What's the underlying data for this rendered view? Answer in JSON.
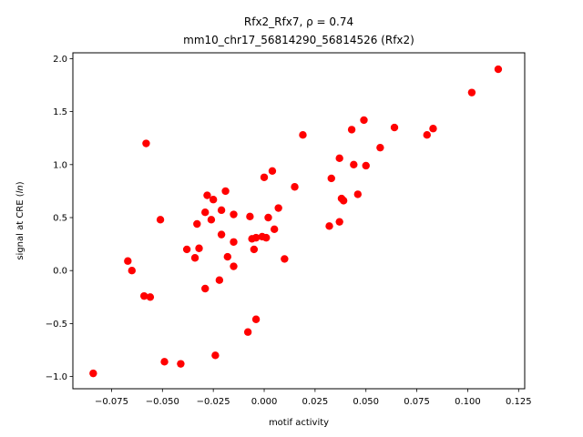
{
  "chart_data": {
    "type": "scatter",
    "title": "Rfx2_Rfx7, ρ = 0.74",
    "subtitle": "mm10_chr17_56814290_56814526 (Rfx2)",
    "xlabel": "motif activity",
    "ylabel_prefix": "signal at CRE (",
    "ylabel_italic": "ln",
    "ylabel_suffix": ")",
    "xlim": [
      -0.094,
      0.128
    ],
    "ylim": [
      -1.115,
      2.055
    ],
    "xticks": [
      -0.075,
      -0.05,
      -0.025,
      0.0,
      0.025,
      0.05,
      0.075,
      0.1,
      0.125
    ],
    "xtick_labels": [
      "−0.075",
      "−0.050",
      "−0.025",
      "0.000",
      "0.025",
      "0.050",
      "0.075",
      "0.100",
      "0.125"
    ],
    "yticks": [
      -1.0,
      -0.5,
      0.0,
      0.5,
      1.0,
      1.5,
      2.0
    ],
    "ytick_labels": [
      "−1.0",
      "−0.5",
      "0.0",
      "0.5",
      "1.0",
      "1.5",
      "2.0"
    ],
    "grid": false,
    "marker_color": "#ff0000",
    "points": [
      {
        "x": -0.084,
        "y": -0.97
      },
      {
        "x": -0.067,
        "y": 0.09
      },
      {
        "x": -0.065,
        "y": 0.0
      },
      {
        "x": -0.059,
        "y": -0.24
      },
      {
        "x": -0.058,
        "y": 1.2
      },
      {
        "x": -0.056,
        "y": -0.25
      },
      {
        "x": -0.051,
        "y": 0.48
      },
      {
        "x": -0.049,
        "y": -0.86
      },
      {
        "x": -0.041,
        "y": -0.88
      },
      {
        "x": -0.038,
        "y": 0.2
      },
      {
        "x": -0.034,
        "y": 0.12
      },
      {
        "x": -0.033,
        "y": 0.44
      },
      {
        "x": -0.032,
        "y": 0.21
      },
      {
        "x": -0.029,
        "y": 0.55
      },
      {
        "x": -0.029,
        "y": -0.17
      },
      {
        "x": -0.028,
        "y": 0.71
      },
      {
        "x": -0.026,
        "y": 0.48
      },
      {
        "x": -0.025,
        "y": 0.67
      },
      {
        "x": -0.024,
        "y": -0.8
      },
      {
        "x": -0.022,
        "y": -0.09
      },
      {
        "x": -0.021,
        "y": 0.57
      },
      {
        "x": -0.021,
        "y": 0.34
      },
      {
        "x": -0.019,
        "y": 0.75
      },
      {
        "x": -0.018,
        "y": 0.13
      },
      {
        "x": -0.015,
        "y": 0.53
      },
      {
        "x": -0.015,
        "y": 0.27
      },
      {
        "x": -0.015,
        "y": 0.04
      },
      {
        "x": -0.008,
        "y": -0.58
      },
      {
        "x": -0.007,
        "y": 0.51
      },
      {
        "x": -0.006,
        "y": 0.3
      },
      {
        "x": -0.005,
        "y": 0.2
      },
      {
        "x": -0.004,
        "y": 0.31
      },
      {
        "x": -0.004,
        "y": -0.46
      },
      {
        "x": -0.001,
        "y": 0.32
      },
      {
        "x": 0.0,
        "y": 0.88
      },
      {
        "x": 0.001,
        "y": 0.31
      },
      {
        "x": 0.002,
        "y": 0.5
      },
      {
        "x": 0.004,
        "y": 0.94
      },
      {
        "x": 0.005,
        "y": 0.39
      },
      {
        "x": 0.007,
        "y": 0.59
      },
      {
        "x": 0.01,
        "y": 0.11
      },
      {
        "x": 0.015,
        "y": 0.79
      },
      {
        "x": 0.019,
        "y": 1.28
      },
      {
        "x": 0.032,
        "y": 0.42
      },
      {
        "x": 0.033,
        "y": 0.87
      },
      {
        "x": 0.037,
        "y": 0.46
      },
      {
        "x": 0.037,
        "y": 1.06
      },
      {
        "x": 0.038,
        "y": 0.68
      },
      {
        "x": 0.039,
        "y": 0.66
      },
      {
        "x": 0.043,
        "y": 1.33
      },
      {
        "x": 0.044,
        "y": 1.0
      },
      {
        "x": 0.046,
        "y": 0.72
      },
      {
        "x": 0.049,
        "y": 1.42
      },
      {
        "x": 0.05,
        "y": 0.99
      },
      {
        "x": 0.057,
        "y": 1.16
      },
      {
        "x": 0.064,
        "y": 1.35
      },
      {
        "x": 0.08,
        "y": 1.28
      },
      {
        "x": 0.083,
        "y": 1.34
      },
      {
        "x": 0.102,
        "y": 1.68
      },
      {
        "x": 0.115,
        "y": 1.9
      }
    ]
  }
}
